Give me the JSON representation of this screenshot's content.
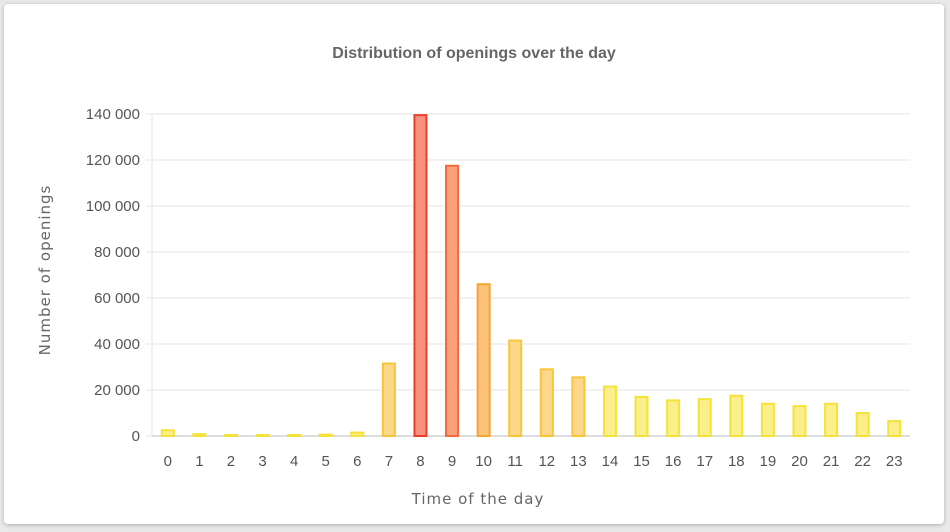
{
  "chart_data": {
    "type": "bar",
    "title": "Distribution of openings over the day",
    "xlabel": "Time of the day",
    "ylabel": "Number of openings",
    "ylim": [
      0,
      140000
    ],
    "yticks": [
      0,
      20000,
      40000,
      60000,
      80000,
      100000,
      120000,
      140000
    ],
    "ytick_labels": [
      "0",
      "20 000",
      "40 000",
      "60 000",
      "80 000",
      "100 000",
      "120 000",
      "140 000"
    ],
    "categories": [
      "0",
      "1",
      "2",
      "3",
      "4",
      "5",
      "6",
      "7",
      "8",
      "9",
      "10",
      "11",
      "12",
      "13",
      "14",
      "15",
      "16",
      "17",
      "18",
      "19",
      "20",
      "21",
      "22",
      "23"
    ],
    "values": [
      2500,
      800,
      300,
      200,
      300,
      600,
      1500,
      31500,
      139500,
      117500,
      66000,
      41500,
      29000,
      25500,
      21500,
      17000,
      15500,
      16000,
      17500,
      14000,
      13000,
      14000,
      10000,
      6500
    ],
    "grid": true,
    "legend": "none",
    "colors": {
      "low_fill": "#fbef8a",
      "low_stroke": "#f5e23a",
      "mid_fill": "#fcd98a",
      "mid_stroke": "#f7c53a",
      "orange_fill": "#fcc27a",
      "orange_stroke": "#f5a532",
      "high_fill": "#fca07e",
      "high_stroke": "#f26b3a",
      "peak_fill": "#fc8f7e",
      "peak_stroke": "#e8402a"
    }
  }
}
